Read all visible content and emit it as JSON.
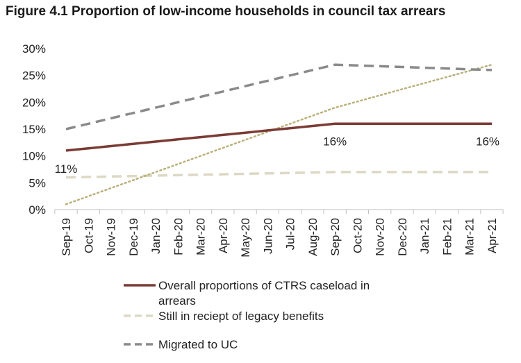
{
  "chart_data": {
    "type": "line",
    "title": "Figure 4.1 Proportion of low-income households in council tax arrears",
    "categories": [
      "Sep-19",
      "Oct-19",
      "Nov-19",
      "Dec-19",
      "Jan-20",
      "Feb-20",
      "Mar-20",
      "Apr-20",
      "May-20",
      "Jun-20",
      "Jul-20",
      "Aug-20",
      "Sep-20",
      "Oct-20",
      "Nov-20",
      "Dec-20",
      "Jan-21",
      "Feb-21",
      "Mar-21",
      "Apr-21"
    ],
    "ylim": [
      0,
      30
    ],
    "yticks": [
      0,
      5,
      10,
      15,
      20,
      25,
      30
    ],
    "ytick_labels": [
      "0%",
      "5%",
      "10%",
      "15%",
      "20%",
      "25%",
      "30%"
    ],
    "grid": false,
    "legend_position": "bottom",
    "series": [
      {
        "name": "Overall proportions of CTRS caseload in arrears",
        "legend_lines": [
          "Overall proportions of CTRS caseload in",
          "arrears"
        ],
        "style": "solid",
        "color": "#7b3b35",
        "values": [
          11,
          11.42,
          11.83,
          12.25,
          12.67,
          13.08,
          13.5,
          13.92,
          14.33,
          14.75,
          15.17,
          15.58,
          16,
          16,
          16,
          16,
          16,
          16,
          16,
          16
        ]
      },
      {
        "name": "Still in reciept of legacy benefits",
        "legend_lines": [
          "Still in reciept of legacy benefits"
        ],
        "style": "dashed",
        "color": "#ddd8c4",
        "values": [
          6,
          6.08,
          6.17,
          6.25,
          6.33,
          6.42,
          6.5,
          6.58,
          6.67,
          6.75,
          6.83,
          6.92,
          7,
          7,
          7,
          7,
          7,
          7,
          7,
          7
        ]
      },
      {
        "name": "Migrated to UC",
        "legend_lines": [
          "Migrated to UC"
        ],
        "style": "dashed",
        "color": "#8a8a8a",
        "values": [
          15,
          16,
          17,
          18,
          19,
          20,
          21,
          22,
          23,
          24,
          25,
          26,
          27,
          26.86,
          26.71,
          26.57,
          26.43,
          26.29,
          26.14,
          26
        ]
      },
      {
        "name": "",
        "style": "dotted",
        "color": "#b9b07a",
        "values": [
          1,
          2.5,
          4,
          5.5,
          7,
          8.5,
          10,
          11.5,
          13,
          14.5,
          16,
          17.5,
          19,
          20.14,
          21.29,
          22.43,
          23.57,
          24.71,
          25.86,
          27
        ]
      }
    ],
    "annotations": [
      {
        "text": "11%",
        "category": "Sep-19",
        "value": 11,
        "series": 0
      },
      {
        "text": "16%",
        "category": "Sep-20",
        "value": 16,
        "series": 0
      },
      {
        "text": "16%",
        "category": "Apr-21",
        "value": 16,
        "series": 0
      }
    ]
  }
}
